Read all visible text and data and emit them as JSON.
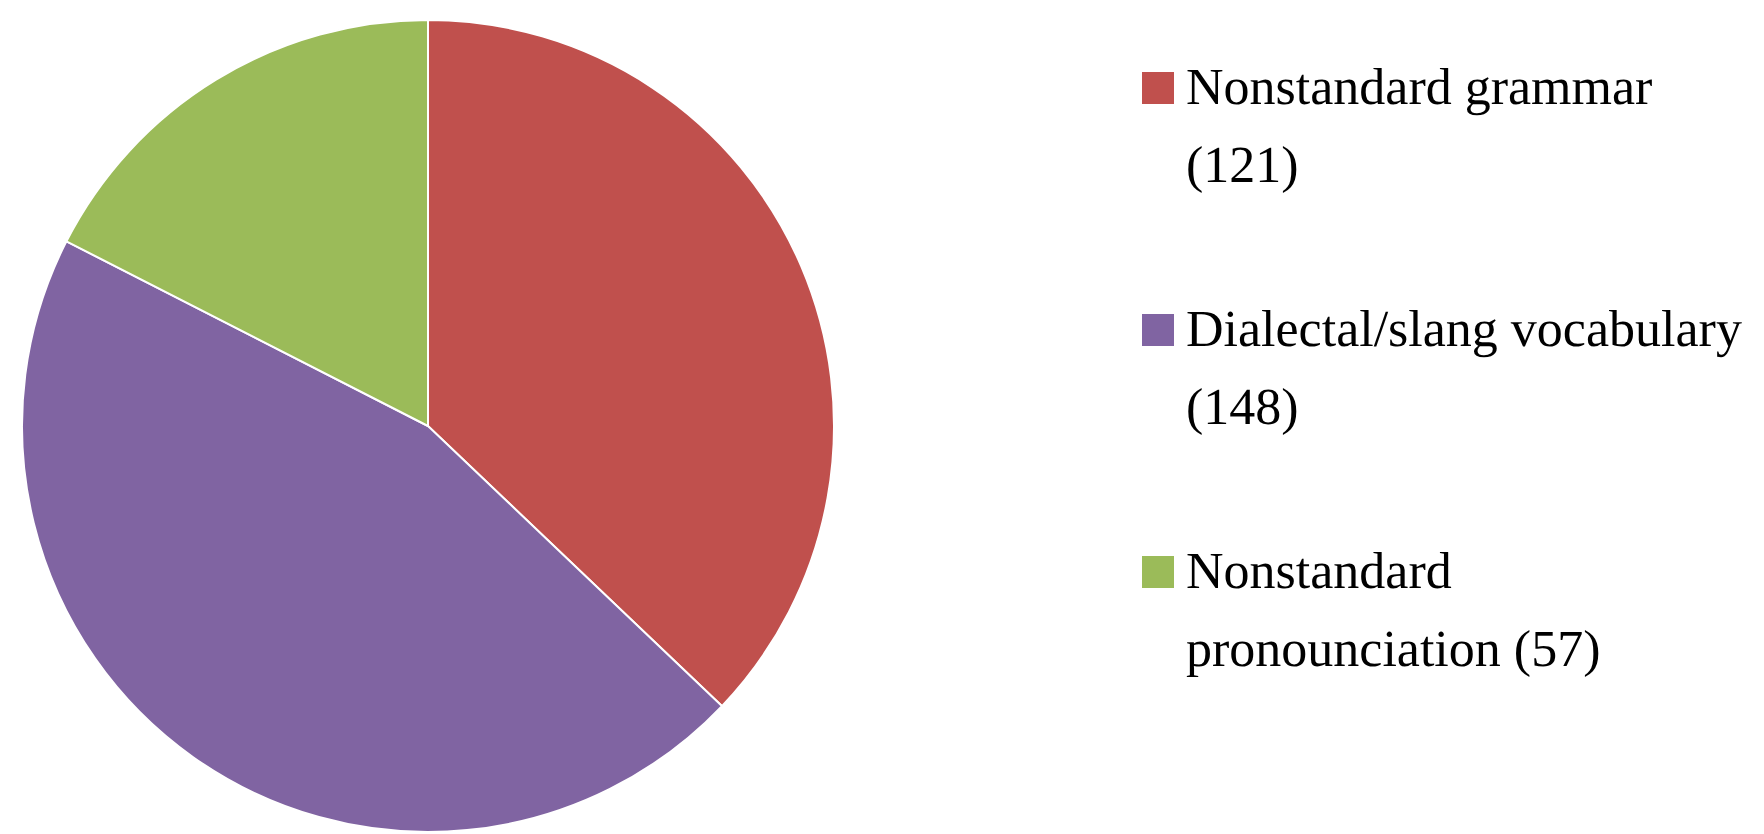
{
  "chart_data": {
    "type": "pie",
    "categories": [
      "Nonstandard grammar (121)",
      "Dialectal/slang vocabulary (148)",
      "Nonstandard pronounciation (57)"
    ],
    "values": [
      121,
      148,
      57
    ],
    "colors": [
      "#c0504d",
      "#8064a2",
      "#9bbb59"
    ],
    "legend": "right"
  }
}
